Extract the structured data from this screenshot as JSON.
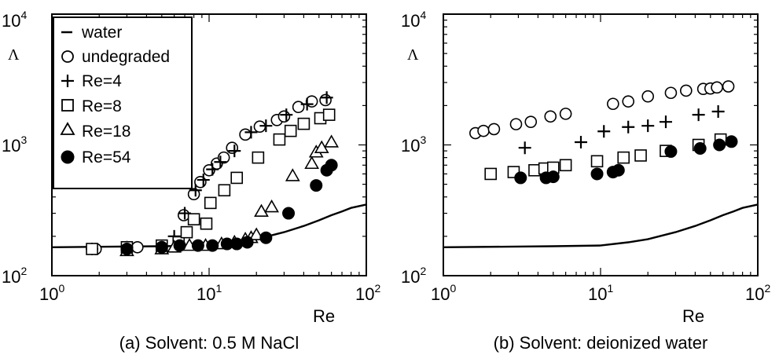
{
  "chart_data": [
    {
      "type": "scatter",
      "caption": "(a) Solvent: 0.5 M NaCl",
      "xlabel": "Re",
      "ylabel": "Λ",
      "xscale": "log",
      "yscale": "log",
      "xlim": [
        1,
        100
      ],
      "ylim": [
        100,
        10000
      ],
      "x_tick_base": "10",
      "x_tick_exponents": [
        "0",
        "1",
        "2"
      ],
      "y_tick_base": "10",
      "y_tick_exponents": [
        "2",
        "3",
        "4"
      ],
      "legend": "top-left",
      "series": [
        {
          "name": "water",
          "marker": "line",
          "points": [
            [
              1,
              165
            ],
            [
              5,
              168
            ],
            [
              10,
              170
            ],
            [
              15,
              180
            ],
            [
              20,
              190
            ],
            [
              30,
              215
            ],
            [
              40,
              240
            ],
            [
              50,
              265
            ],
            [
              60,
              290
            ],
            [
              70,
              310
            ],
            [
              80,
              330
            ],
            [
              100,
              350
            ]
          ]
        },
        {
          "name": "undegraded",
          "marker": "circle",
          "points": [
            [
              1.9,
              160
            ],
            [
              3.5,
              165
            ],
            [
              6.9,
              290
            ],
            [
              8.0,
              420
            ],
            [
              8.8,
              520
            ],
            [
              10.0,
              640
            ],
            [
              11.2,
              720
            ],
            [
              12.4,
              800
            ],
            [
              14.0,
              950
            ],
            [
              17.0,
              1200
            ],
            [
              21.0,
              1380
            ],
            [
              27.0,
              1550
            ],
            [
              30.0,
              1650
            ],
            [
              37.0,
              1950
            ],
            [
              45.0,
              2150
            ],
            [
              55.0,
              2200
            ]
          ]
        },
        {
          "name": "Re=4",
          "marker": "plus",
          "points": [
            [
              1.8,
              160
            ],
            [
              3.0,
              165
            ],
            [
              6.0,
              200
            ],
            [
              7.0,
              300
            ],
            [
              8.2,
              450
            ],
            [
              9.2,
              540
            ],
            [
              10.5,
              650
            ],
            [
              11.8,
              740
            ],
            [
              14.5,
              900
            ],
            [
              18.5,
              1250
            ],
            [
              23.0,
              1400
            ],
            [
              31.0,
              1700
            ],
            [
              42.0,
              2050
            ],
            [
              56.0,
              2300
            ]
          ]
        },
        {
          "name": "Re=8",
          "marker": "square",
          "points": [
            [
              1.8,
              160
            ],
            [
              3.0,
              165
            ],
            [
              5.0,
              170
            ],
            [
              6.4,
              180
            ],
            [
              7.2,
              215
            ],
            [
              8.0,
              270
            ],
            [
              9.6,
              250
            ],
            [
              10.2,
              360
            ],
            [
              12.5,
              450
            ],
            [
              15.0,
              560
            ],
            [
              20.5,
              800
            ],
            [
              28.0,
              1100
            ],
            [
              33.0,
              1280
            ],
            [
              40.0,
              1450
            ],
            [
              51.0,
              1600
            ],
            [
              58.0,
              1700
            ]
          ]
        },
        {
          "name": "Re=18",
          "marker": "triangle",
          "points": [
            [
              3.0,
              155
            ],
            [
              5.0,
              160
            ],
            [
              6.0,
              165
            ],
            [
              7.5,
              170
            ],
            [
              9.5,
              170
            ],
            [
              12.0,
              175
            ],
            [
              14.5,
              180
            ],
            [
              17.0,
              190
            ],
            [
              18.5,
              195
            ],
            [
              20.0,
              205
            ],
            [
              21.5,
              310
            ],
            [
              25.0,
              335
            ],
            [
              34.0,
              580
            ],
            [
              45.0,
              720
            ],
            [
              48.0,
              880
            ],
            [
              52.0,
              950
            ],
            [
              60.0,
              1050
            ]
          ]
        },
        {
          "name": "Re=54",
          "marker": "filledcircle",
          "points": [
            [
              3.0,
              160
            ],
            [
              5.0,
              165
            ],
            [
              6.5,
              170
            ],
            [
              8.5,
              170
            ],
            [
              10.5,
              170
            ],
            [
              13.0,
              175
            ],
            [
              15.0,
              175
            ],
            [
              17.5,
              180
            ],
            [
              23.0,
              195
            ],
            [
              32.0,
              300
            ],
            [
              48.0,
              490
            ],
            [
              56.0,
              640
            ],
            [
              60.0,
              700
            ]
          ]
        }
      ]
    },
    {
      "type": "scatter",
      "caption": "(b) Solvent: deionized water",
      "xlabel": "Re",
      "ylabel": "Λ",
      "xscale": "log",
      "yscale": "log",
      "xlim": [
        1,
        100
      ],
      "ylim": [
        100,
        10000
      ],
      "x_tick_base": "10",
      "x_tick_exponents": [
        "0",
        "1",
        "2"
      ],
      "y_tick_base": "10",
      "y_tick_exponents": [
        "2",
        "3",
        "4"
      ],
      "series": [
        {
          "name": "water",
          "marker": "line",
          "points": [
            [
              1,
              165
            ],
            [
              5,
              168
            ],
            [
              10,
              170
            ],
            [
              15,
              180
            ],
            [
              20,
              190
            ],
            [
              30,
              215
            ],
            [
              40,
              240
            ],
            [
              50,
              265
            ],
            [
              60,
              290
            ],
            [
              70,
              310
            ],
            [
              80,
              330
            ],
            [
              100,
              350
            ]
          ]
        },
        {
          "name": "undegraded",
          "marker": "circle",
          "points": [
            [
              1.6,
              1230
            ],
            [
              1.8,
              1280
            ],
            [
              2.1,
              1320
            ],
            [
              2.9,
              1440
            ],
            [
              3.6,
              1500
            ],
            [
              4.8,
              1650
            ],
            [
              6.0,
              1730
            ],
            [
              12.0,
              2060
            ],
            [
              15.0,
              2150
            ],
            [
              20.0,
              2350
            ],
            [
              28.0,
              2500
            ],
            [
              35.0,
              2600
            ],
            [
              45.0,
              2680
            ],
            [
              50.0,
              2700
            ],
            [
              55.0,
              2750
            ],
            [
              65.0,
              2800
            ]
          ]
        },
        {
          "name": "Re=4",
          "marker": "plus",
          "points": [
            [
              3.3,
              950
            ],
            [
              7.5,
              1050
            ],
            [
              10.5,
              1270
            ],
            [
              15.0,
              1370
            ],
            [
              20.0,
              1400
            ],
            [
              26.0,
              1500
            ],
            [
              42.0,
              1700
            ],
            [
              56.0,
              1800
            ]
          ]
        },
        {
          "name": "Re=8",
          "marker": "square",
          "points": [
            [
              2.0,
              600
            ],
            [
              2.8,
              620
            ],
            [
              3.8,
              640
            ],
            [
              4.4,
              660
            ],
            [
              5.0,
              670
            ],
            [
              6.0,
              700
            ],
            [
              9.5,
              750
            ],
            [
              14.0,
              800
            ],
            [
              18.0,
              830
            ],
            [
              26.0,
              900
            ],
            [
              42.0,
              1000
            ],
            [
              58.0,
              1100
            ]
          ]
        },
        {
          "name": "Re=54",
          "marker": "filledcircle",
          "points": [
            [
              3.1,
              560
            ],
            [
              4.5,
              560
            ],
            [
              5.0,
              570
            ],
            [
              9.5,
              600
            ],
            [
              12.0,
              620
            ],
            [
              13.0,
              640
            ],
            [
              28.0,
              890
            ],
            [
              43.0,
              940
            ],
            [
              57.0,
              1000
            ],
            [
              68.0,
              1060
            ]
          ]
        }
      ]
    }
  ]
}
